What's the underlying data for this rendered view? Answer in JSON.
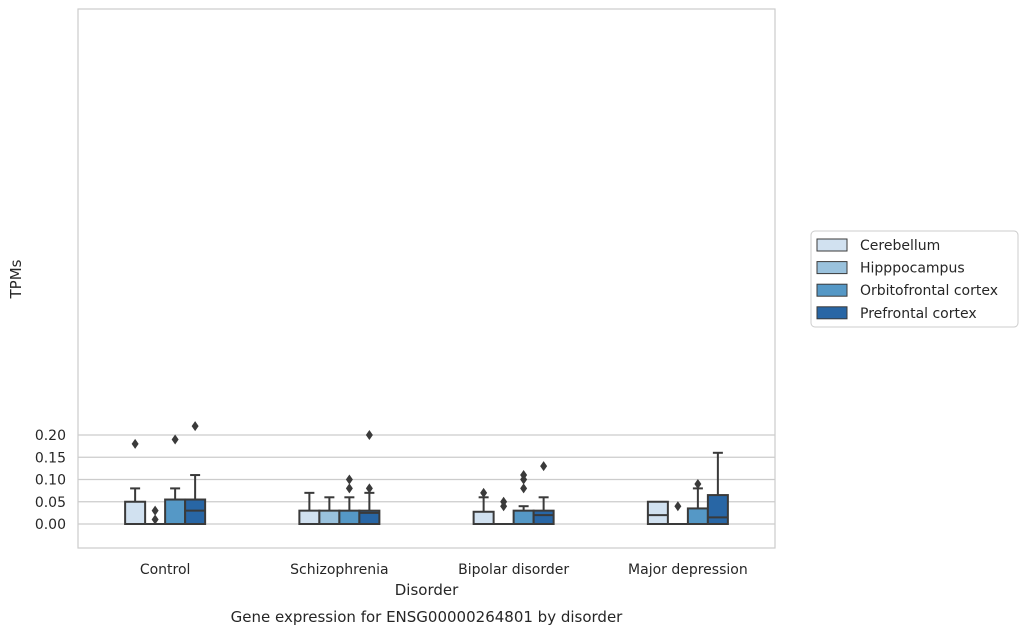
{
  "chart_data": {
    "type": "box",
    "caption": "Gene expression for ENSG00000264801 by disorder",
    "xlabel": "Disorder",
    "ylabel": "TPMs",
    "ylim": [
      -0.011,
      0.2315
    ],
    "yticks": [
      0.0,
      0.05,
      0.1,
      0.15,
      0.2
    ],
    "ytick_labels": [
      "0.00",
      "0.05",
      "0.10",
      "0.15",
      "0.20"
    ],
    "grid": "horizontal",
    "legend_position": "right",
    "categories": [
      "Control",
      "Schizophrenia",
      "Bipolar disorder",
      "Major depression"
    ],
    "series": [
      {
        "name": "Cerebellum",
        "color": "#d1e1f0",
        "boxes": [
          {
            "q1": 0.0,
            "median": 0.0,
            "q3": 0.05,
            "whisker_low": 0.0,
            "whisker_high": 0.08,
            "outliers": [
              0.18
            ]
          },
          {
            "q1": 0.0,
            "median": 0.0,
            "q3": 0.03,
            "whisker_low": 0.0,
            "whisker_high": 0.07,
            "outliers": []
          },
          {
            "q1": 0.0,
            "median": 0.0,
            "q3": 0.0275,
            "whisker_low": 0.0,
            "whisker_high": 0.06,
            "outliers": [
              0.07
            ]
          },
          {
            "q1": 0.0,
            "median": 0.02,
            "q3": 0.05,
            "whisker_low": 0.0,
            "whisker_high": 0.05,
            "outliers": []
          }
        ]
      },
      {
        "name": "Hipppocampus",
        "color": "#9ac2dd",
        "boxes": [
          {
            "q1": 0.0,
            "median": 0.0,
            "q3": 0.0,
            "whisker_low": 0.0,
            "whisker_high": 0.0,
            "outliers": [
              0.01,
              0.03
            ]
          },
          {
            "q1": 0.0,
            "median": 0.0,
            "q3": 0.03,
            "whisker_low": 0.0,
            "whisker_high": 0.06,
            "outliers": []
          },
          {
            "q1": 0.0,
            "median": 0.0,
            "q3": 0.0,
            "whisker_low": 0.0,
            "whisker_high": 0.0,
            "outliers": [
              0.04,
              0.05
            ]
          },
          {
            "q1": 0.0,
            "median": 0.0,
            "q3": 0.0,
            "whisker_low": 0.0,
            "whisker_high": 0.0,
            "outliers": [
              0.04
            ]
          }
        ]
      },
      {
        "name": "Orbitofrontal cortex",
        "color": "#5598c6",
        "boxes": [
          {
            "q1": 0.0,
            "median": 0.0,
            "q3": 0.055,
            "whisker_low": 0.0,
            "whisker_high": 0.08,
            "outliers": [
              0.19
            ]
          },
          {
            "q1": 0.0,
            "median": 0.0,
            "q3": 0.03,
            "whisker_low": 0.0,
            "whisker_high": 0.06,
            "outliers": [
              0.08,
              0.1
            ]
          },
          {
            "q1": 0.0,
            "median": 0.0,
            "q3": 0.03,
            "whisker_low": 0.0,
            "whisker_high": 0.04,
            "outliers": [
              0.08,
              0.1,
              0.11
            ]
          },
          {
            "q1": 0.0,
            "median": 0.0,
            "q3": 0.035,
            "whisker_low": 0.0,
            "whisker_high": 0.08,
            "outliers": [
              0.09
            ]
          }
        ]
      },
      {
        "name": "Prefrontal cortex",
        "color": "#2866a5",
        "boxes": [
          {
            "q1": 0.0,
            "median": 0.03,
            "q3": 0.055,
            "whisker_low": 0.0,
            "whisker_high": 0.11,
            "outliers": [
              0.22
            ]
          },
          {
            "q1": 0.0,
            "median": 0.025,
            "q3": 0.03,
            "whisker_low": 0.0,
            "whisker_high": 0.07,
            "outliers": [
              0.08,
              0.2
            ]
          },
          {
            "q1": 0.0,
            "median": 0.02,
            "q3": 0.03,
            "whisker_low": 0.0,
            "whisker_high": 0.06,
            "outliers": [
              0.13
            ]
          },
          {
            "q1": 0.0,
            "median": 0.015,
            "q3": 0.065,
            "whisker_low": 0.0,
            "whisker_high": 0.16,
            "outliers": []
          }
        ]
      }
    ]
  }
}
